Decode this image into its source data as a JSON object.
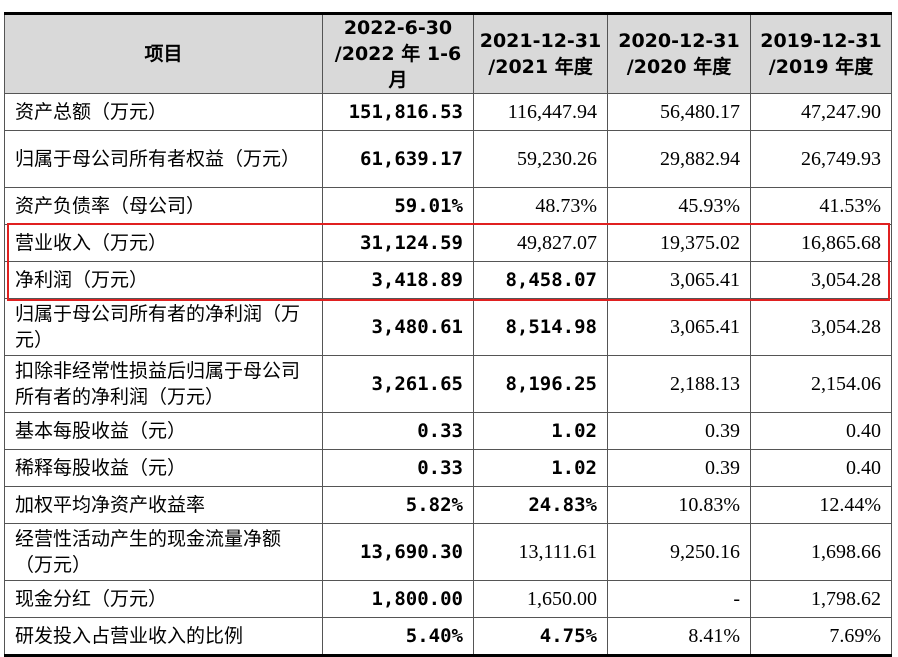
{
  "table": {
    "headers": [
      [
        "项目"
      ],
      [
        "2022-6-30",
        "/2022 年 1-6 月"
      ],
      [
        "2021-12-31",
        "/2021 年度"
      ],
      [
        "2020-12-31",
        "/2020 年度"
      ],
      [
        "2019-12-31",
        "/2019 年度"
      ]
    ],
    "rows": [
      {
        "label": "资产总额（万元）",
        "values": [
          "151,816.53",
          "116,447.94",
          "56,480.17",
          "47,247.90"
        ],
        "bold": [
          true,
          false,
          false,
          false
        ]
      },
      {
        "label": "归属于母公司所有者权益（万元）",
        "values": [
          "61,639.17",
          "59,230.26",
          "29,882.94",
          "26,749.93"
        ],
        "bold": [
          true,
          false,
          false,
          false
        ]
      },
      {
        "label": "资产负债率（母公司）",
        "values": [
          "59.01%",
          "48.73%",
          "45.93%",
          "41.53%"
        ],
        "bold": [
          true,
          false,
          false,
          false
        ]
      },
      {
        "label": "营业收入（万元）",
        "values": [
          "31,124.59",
          "49,827.07",
          "19,375.02",
          "16,865.68"
        ],
        "bold": [
          true,
          false,
          false,
          false
        ]
      },
      {
        "label": "净利润（万元）",
        "values": [
          "3,418.89",
          "8,458.07",
          "3,065.41",
          "3,054.28"
        ],
        "bold": [
          true,
          true,
          false,
          false
        ]
      },
      {
        "label": "归属于母公司所有者的净利润（万元）",
        "values": [
          "3,480.61",
          "8,514.98",
          "3,065.41",
          "3,054.28"
        ],
        "bold": [
          true,
          true,
          false,
          false
        ]
      },
      {
        "label": "扣除非经常性损益后归属于母公司所有者的净利润（万元）",
        "values": [
          "3,261.65",
          "8,196.25",
          "2,188.13",
          "2,154.06"
        ],
        "bold": [
          true,
          true,
          false,
          false
        ]
      },
      {
        "label": "基本每股收益（元）",
        "values": [
          "0.33",
          "1.02",
          "0.39",
          "0.40"
        ],
        "bold": [
          true,
          true,
          false,
          false
        ]
      },
      {
        "label": "稀释每股收益（元）",
        "values": [
          "0.33",
          "1.02",
          "0.39",
          "0.40"
        ],
        "bold": [
          true,
          true,
          false,
          false
        ]
      },
      {
        "label": "加权平均净资产收益率",
        "values": [
          "5.82%",
          "24.83%",
          "10.83%",
          "12.44%"
        ],
        "bold": [
          true,
          true,
          false,
          false
        ]
      },
      {
        "label": "经营性活动产生的现金流量净额（万元）",
        "values": [
          "13,690.30",
          "13,111.61",
          "9,250.16",
          "1,698.66"
        ],
        "bold": [
          true,
          false,
          false,
          false
        ]
      },
      {
        "label": "现金分红（万元）",
        "values": [
          "1,800.00",
          "1,650.00",
          "-",
          "1,798.62"
        ],
        "bold": [
          true,
          false,
          false,
          false
        ]
      },
      {
        "label": "研发投入占营业收入的比例",
        "values": [
          "5.40%",
          "4.75%",
          "8.41%",
          "7.69%"
        ],
        "bold": [
          true,
          true,
          false,
          false
        ]
      }
    ],
    "highlight_color": "#e02020",
    "header_bg": "#d9d9d9"
  }
}
